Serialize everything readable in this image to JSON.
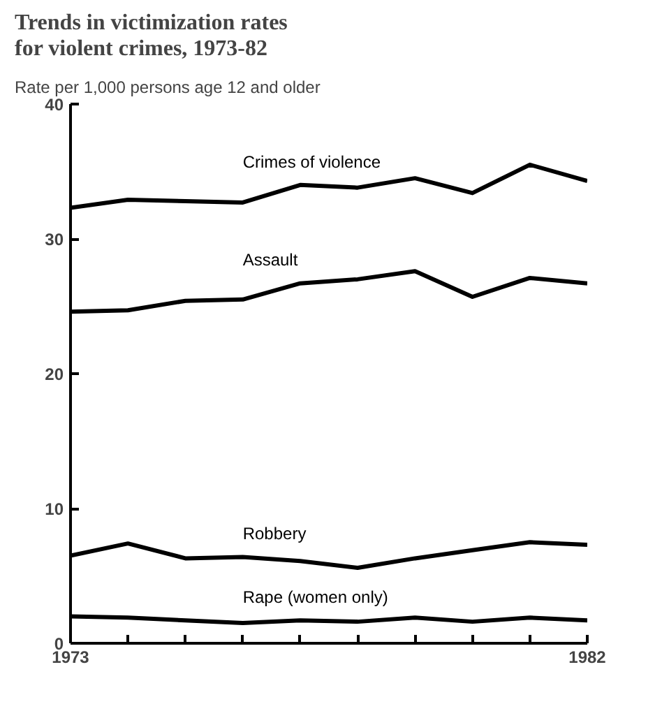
{
  "chart_data": {
    "type": "line",
    "title": "Trends in victimization rates\nfor violent crimes, 1973-82",
    "ylabel": "Rate per 1,000 persons age 12 and older",
    "x": [
      1973,
      1974,
      1975,
      1976,
      1977,
      1978,
      1979,
      1980,
      1981,
      1982
    ],
    "xlim": [
      1973,
      1982
    ],
    "xticks": [
      1973,
      {
        "value": 1974,
        "label": null
      },
      {
        "value": 1975,
        "label": null
      },
      {
        "value": 1976,
        "label": null
      },
      {
        "value": 1977,
        "label": null
      },
      {
        "value": 1978,
        "label": null
      },
      {
        "value": 1979,
        "label": null
      },
      {
        "value": 1980,
        "label": null
      },
      {
        "value": 1981,
        "label": null
      },
      1982
    ],
    "ylim": [
      0,
      40
    ],
    "yticks": [
      0,
      10,
      20,
      30,
      40
    ],
    "grid": false,
    "marker": "none",
    "line_style": "solid",
    "series": [
      {
        "name": "Crimes of violence",
        "color": "#000000",
        "values": [
          32.3,
          32.9,
          32.8,
          32.7,
          34.0,
          33.8,
          34.5,
          33.4,
          35.5,
          34.3
        ]
      },
      {
        "name": "Assault",
        "color": "#000000",
        "values": [
          24.6,
          24.7,
          25.4,
          25.5,
          26.7,
          27.0,
          27.6,
          25.7,
          27.1,
          26.7
        ]
      },
      {
        "name": "Robbery",
        "color": "#000000",
        "values": [
          6.5,
          7.4,
          6.3,
          6.4,
          6.1,
          5.6,
          6.3,
          6.9,
          7.5,
          7.3
        ]
      },
      {
        "name": "Rape (women only)",
        "color": "#000000",
        "values": [
          2.0,
          1.9,
          1.7,
          1.5,
          1.7,
          1.6,
          1.9,
          1.6,
          1.9,
          1.7
        ]
      }
    ]
  }
}
